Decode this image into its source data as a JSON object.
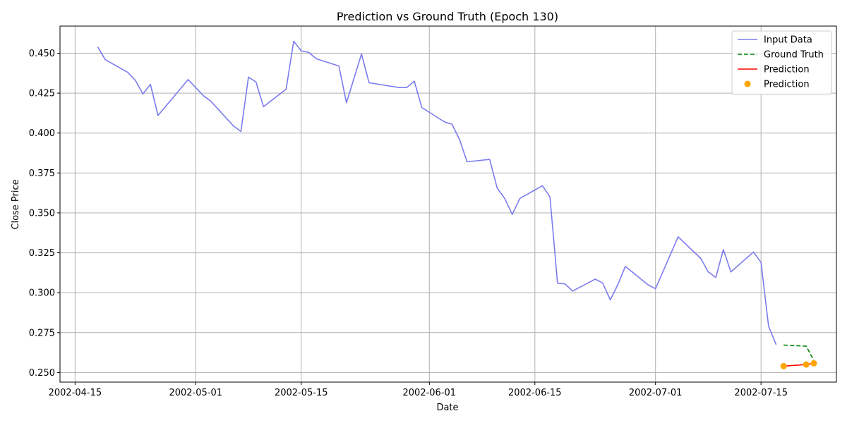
{
  "chart_data": {
    "type": "line",
    "title": "Prediction vs Ground Truth (Epoch 130)",
    "xlabel": "Date",
    "ylabel": "Close Price",
    "xlim": [
      "2002-04-13",
      "2002-07-25"
    ],
    "ylim": [
      0.244,
      0.467
    ],
    "x_ticks": [
      {
        "date": "2002-04-15",
        "label": "2002-04-15"
      },
      {
        "date": "2002-05-01",
        "label": "2002-05-01"
      },
      {
        "date": "2002-05-15",
        "label": "2002-05-15"
      },
      {
        "date": "2002-06-01",
        "label": "2002-06-01"
      },
      {
        "date": "2002-06-15",
        "label": "2002-06-15"
      },
      {
        "date": "2002-07-01",
        "label": "2002-07-01"
      },
      {
        "date": "2002-07-15",
        "label": "2002-07-15"
      }
    ],
    "y_ticks": [
      {
        "value": 0.25,
        "label": "0.250"
      },
      {
        "value": 0.275,
        "label": "0.275"
      },
      {
        "value": 0.3,
        "label": "0.300"
      },
      {
        "value": 0.325,
        "label": "0.325"
      },
      {
        "value": 0.35,
        "label": "0.350"
      },
      {
        "value": 0.375,
        "label": "0.375"
      },
      {
        "value": 0.4,
        "label": "0.400"
      },
      {
        "value": 0.425,
        "label": "0.425"
      },
      {
        "value": 0.45,
        "label": "0.450"
      }
    ],
    "grid": true,
    "legend_position": "top-right",
    "series": [
      {
        "name": "Input Data",
        "kind": "line",
        "color": "#7b7bef",
        "dash": "solid",
        "x": [
          "2002-04-18",
          "2002-04-19",
          "2002-04-22",
          "2002-04-23",
          "2002-04-24",
          "2002-04-25",
          "2002-04-26",
          "2002-04-30",
          "2002-05-02",
          "2002-05-03",
          "2002-05-06",
          "2002-05-07",
          "2002-05-08",
          "2002-05-09",
          "2002-05-10",
          "2002-05-13",
          "2002-05-14",
          "2002-05-15",
          "2002-05-16",
          "2002-05-17",
          "2002-05-20",
          "2002-05-21",
          "2002-05-23",
          "2002-05-24",
          "2002-05-28",
          "2002-05-29",
          "2002-05-30",
          "2002-05-31",
          "2002-06-03",
          "2002-06-04",
          "2002-06-05",
          "2002-06-06",
          "2002-06-09",
          "2002-06-10",
          "2002-06-11",
          "2002-06-12",
          "2002-06-13",
          "2002-06-16",
          "2002-06-17",
          "2002-06-18",
          "2002-06-19",
          "2002-06-20",
          "2002-06-23",
          "2002-06-24",
          "2002-06-25",
          "2002-06-26",
          "2002-06-27",
          "2002-06-30",
          "2002-07-01",
          "2002-07-04",
          "2002-07-07",
          "2002-07-08",
          "2002-07-09",
          "2002-07-10",
          "2002-07-11",
          "2002-07-14",
          "2002-07-15",
          "2002-07-16",
          "2002-07-17"
        ],
        "y": [
          0.454,
          0.446,
          0.438,
          0.433,
          0.4245,
          0.4305,
          0.411,
          0.4335,
          0.4235,
          0.42,
          0.4045,
          0.401,
          0.435,
          0.432,
          0.4165,
          0.4275,
          0.4575,
          0.4515,
          0.4505,
          0.4465,
          0.442,
          0.419,
          0.4495,
          0.4315,
          0.4285,
          0.4285,
          0.4325,
          0.416,
          0.407,
          0.4055,
          0.396,
          0.382,
          0.3835,
          0.3655,
          0.359,
          0.349,
          0.359,
          0.367,
          0.36,
          0.306,
          0.3055,
          0.301,
          0.3085,
          0.306,
          0.2955,
          0.305,
          0.3165,
          0.305,
          0.3025,
          0.335,
          0.3215,
          0.313,
          0.3095,
          0.327,
          0.313,
          0.3255,
          0.319,
          0.279,
          0.2675
        ]
      },
      {
        "name": "Ground Truth",
        "kind": "line",
        "color": "#008000",
        "dash": "dashed",
        "x": [
          "2002-07-18",
          "2002-07-21",
          "2002-07-22"
        ],
        "y": [
          0.2672,
          0.2665,
          0.2575
        ]
      },
      {
        "name": "Prediction",
        "kind": "line",
        "color": "#ff0000",
        "dash": "solid",
        "x": [
          "2002-07-18",
          "2002-07-21",
          "2002-07-22"
        ],
        "y": [
          0.254,
          0.255,
          0.2558
        ]
      },
      {
        "name": "Prediction",
        "kind": "scatter",
        "color": "#ffa500",
        "x": [
          "2002-07-18",
          "2002-07-21",
          "2002-07-22"
        ],
        "y": [
          0.254,
          0.255,
          0.2558
        ]
      }
    ]
  }
}
